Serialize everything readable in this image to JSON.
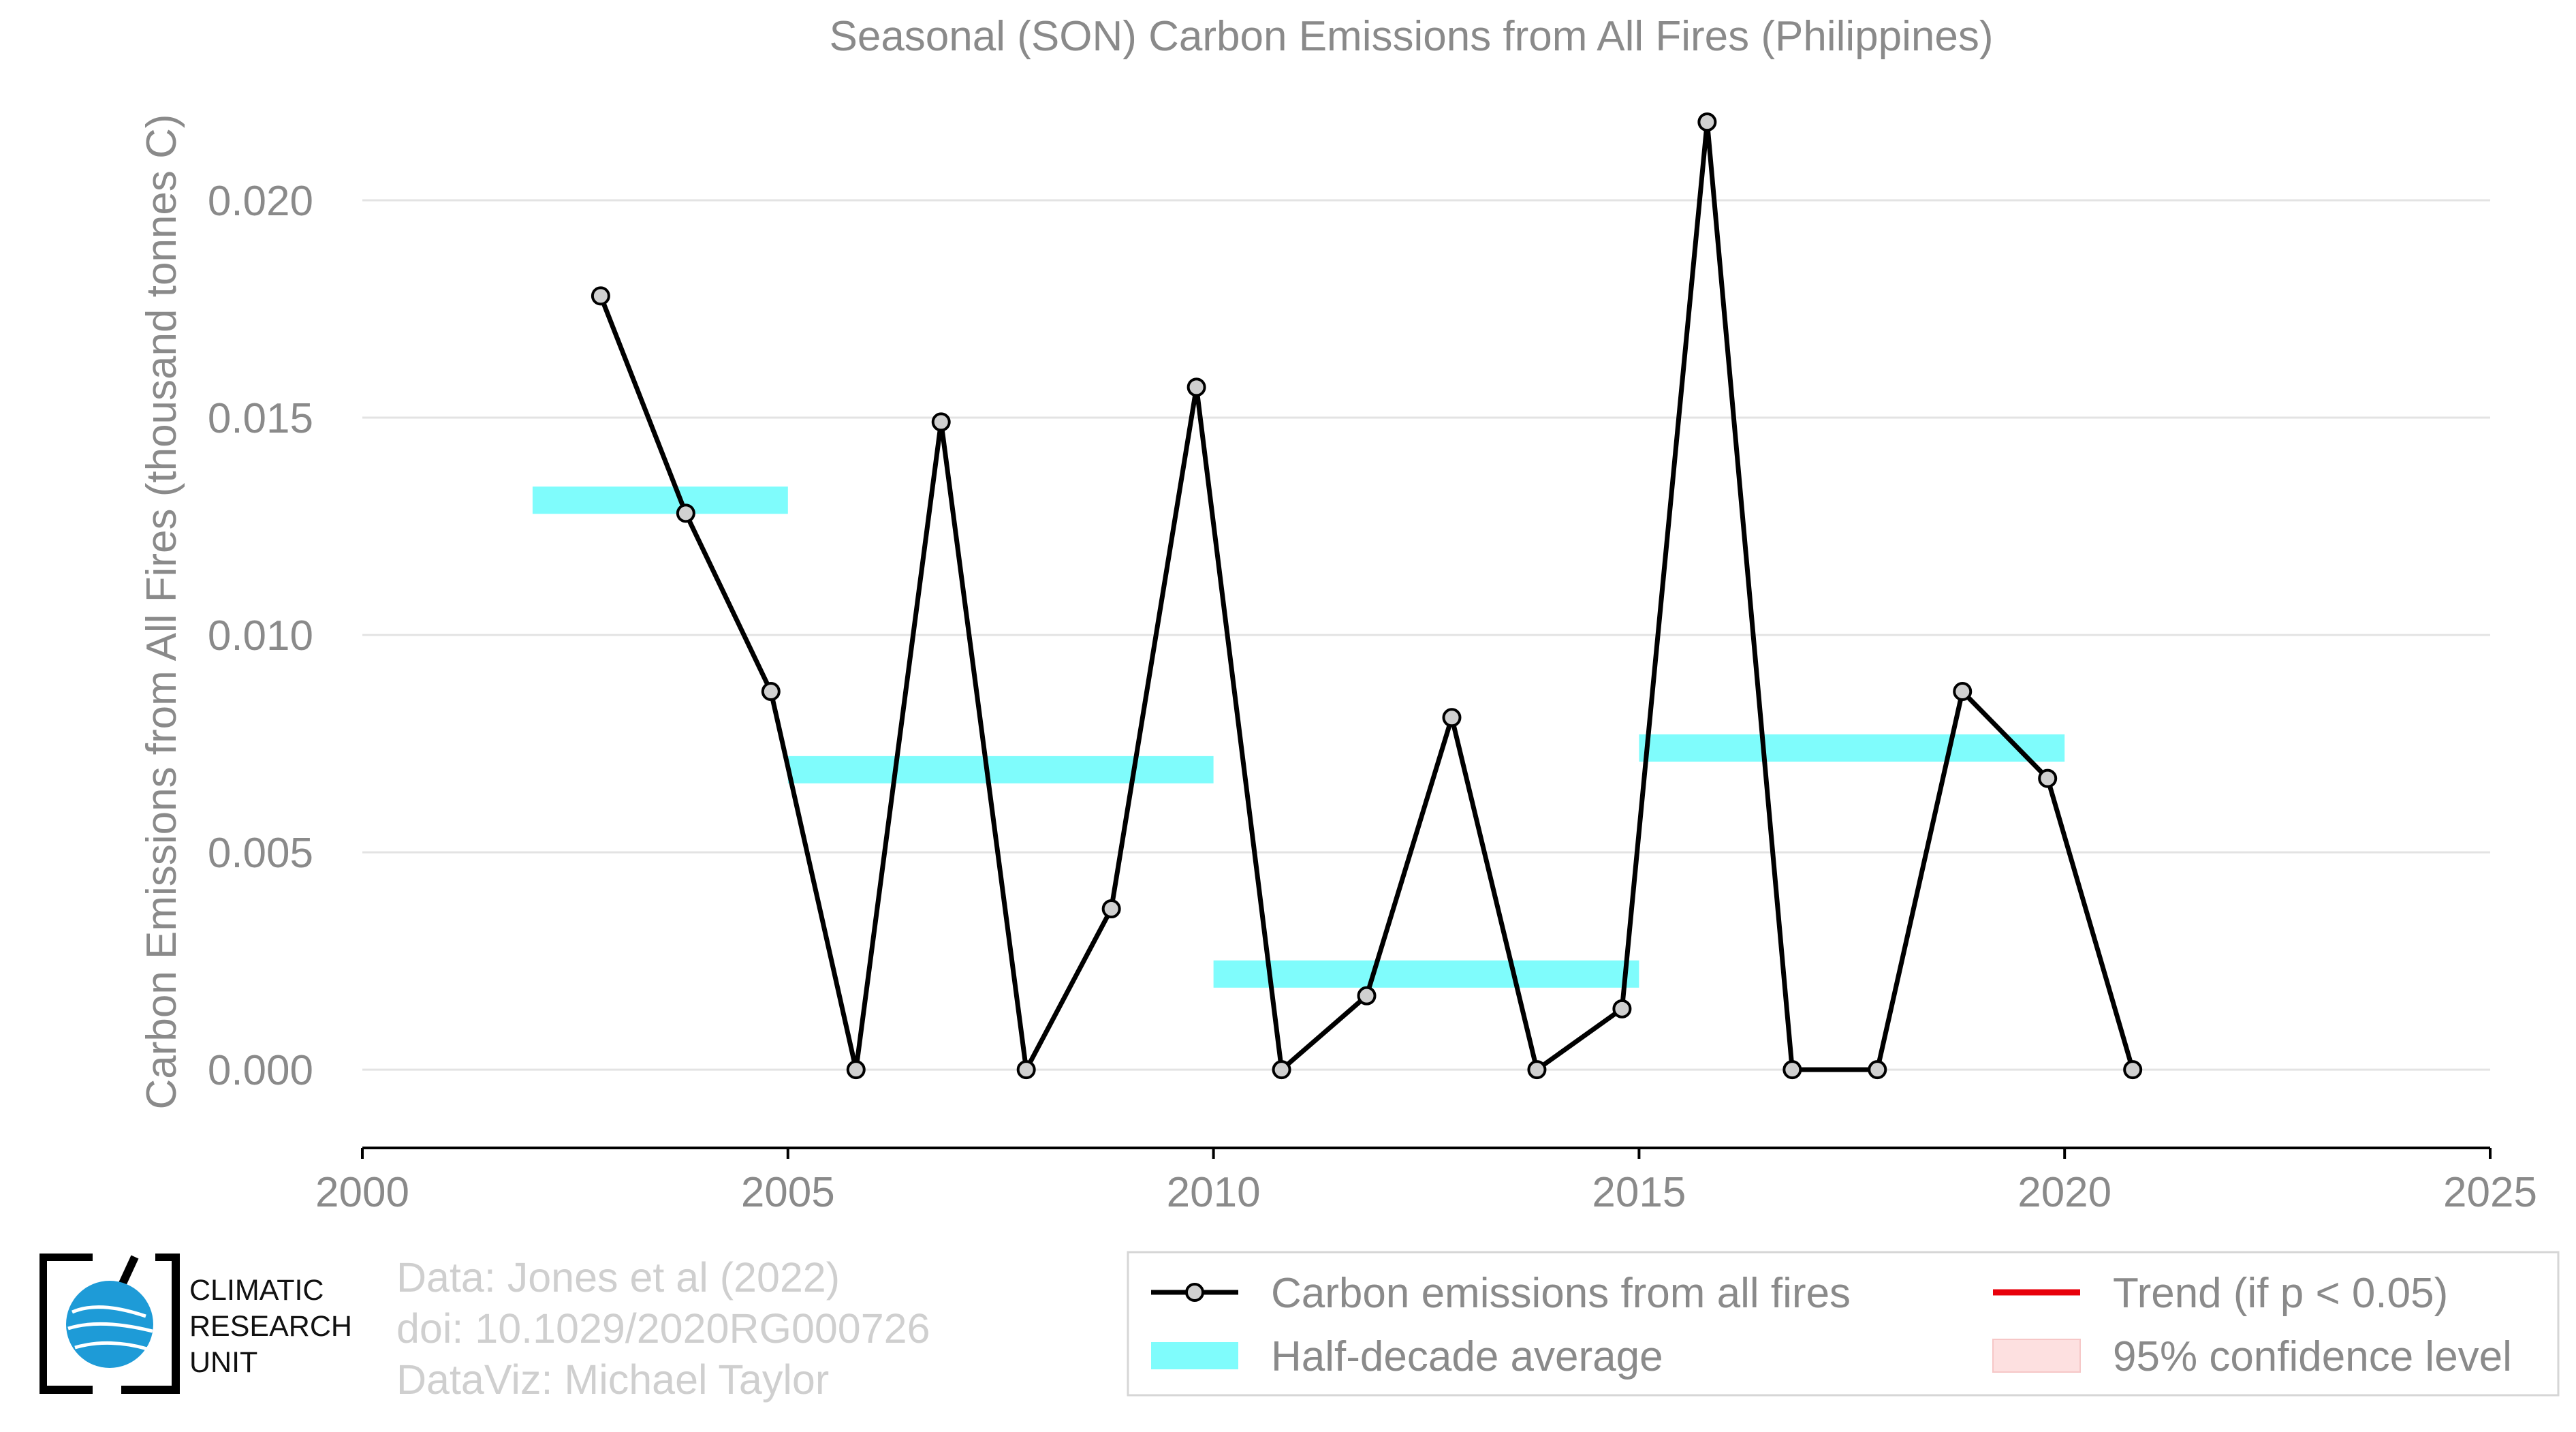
{
  "chart_data": {
    "type": "line",
    "title": "Seasonal (SON) Carbon Emissions from All Fires (Philippines)",
    "ylabel": "Carbon Emissions from All Fires (thousand tonnes C)",
    "xlabel": "",
    "xlim": [
      2000,
      2025
    ],
    "ylim": [
      -0.0018,
      0.0221
    ],
    "x_ticks": [
      "2000",
      "2005",
      "2010",
      "2015",
      "2020",
      "2025"
    ],
    "x_tick_values": [
      2000,
      2005,
      2010,
      2015,
      2020,
      2025
    ],
    "y_ticks": [
      "0.000",
      "0.005",
      "0.010",
      "0.015",
      "0.020"
    ],
    "y_tick_values": [
      0.0,
      0.005,
      0.01,
      0.015,
      0.02
    ],
    "grid": "horizontal",
    "legend_position": "bottom-right",
    "series": [
      {
        "name": "Carbon emissions from all fires",
        "color": "#000000",
        "x": [
          2002.8,
          2003.8,
          2004.8,
          2005.8,
          2006.8,
          2007.8,
          2008.8,
          2009.8,
          2010.8,
          2011.8,
          2012.8,
          2013.8,
          2014.8,
          2015.8,
          2016.8,
          2017.8,
          2018.8,
          2019.8,
          2020.8
        ],
        "values": [
          0.0178,
          0.0128,
          0.0087,
          0.0,
          0.0149,
          0.0,
          0.0037,
          0.0157,
          0.0,
          0.0017,
          0.0081,
          0.0,
          0.0014,
          0.0218,
          0.0,
          0.0,
          0.0087,
          0.0067,
          0.0
        ]
      },
      {
        "name": "Half-decade average",
        "color": "#7ffcfc",
        "segments": [
          {
            "x0": 2002,
            "x1": 2005,
            "value": 0.0131
          },
          {
            "x0": 2005,
            "x1": 2010,
            "value": 0.0069
          },
          {
            "x0": 2010,
            "x1": 2015,
            "value": 0.0022
          },
          {
            "x0": 2015,
            "x1": 2020,
            "value": 0.0074
          }
        ]
      }
    ],
    "legend": [
      {
        "label": "Carbon emissions from all fires",
        "symbol": "line-marker",
        "color": "#000000"
      },
      {
        "label": "Trend (if p < 0.05)",
        "symbol": "line",
        "color": "#e8000b"
      },
      {
        "label": "Half-decade average",
        "symbol": "band",
        "color": "#7ffcfc"
      },
      {
        "label": "95% confidence level",
        "symbol": "box",
        "color": "#fde0e0"
      }
    ]
  },
  "credits": {
    "data": "Data: Jones et al (2022)",
    "doi": "doi: 10.1029/2020RG000726",
    "dataviz": "DataViz: Michael Taylor"
  },
  "logo": {
    "lines": [
      "CLIMATIC",
      "RESEARCH",
      "UNIT"
    ],
    "globe_color": "#1e9bd7"
  }
}
